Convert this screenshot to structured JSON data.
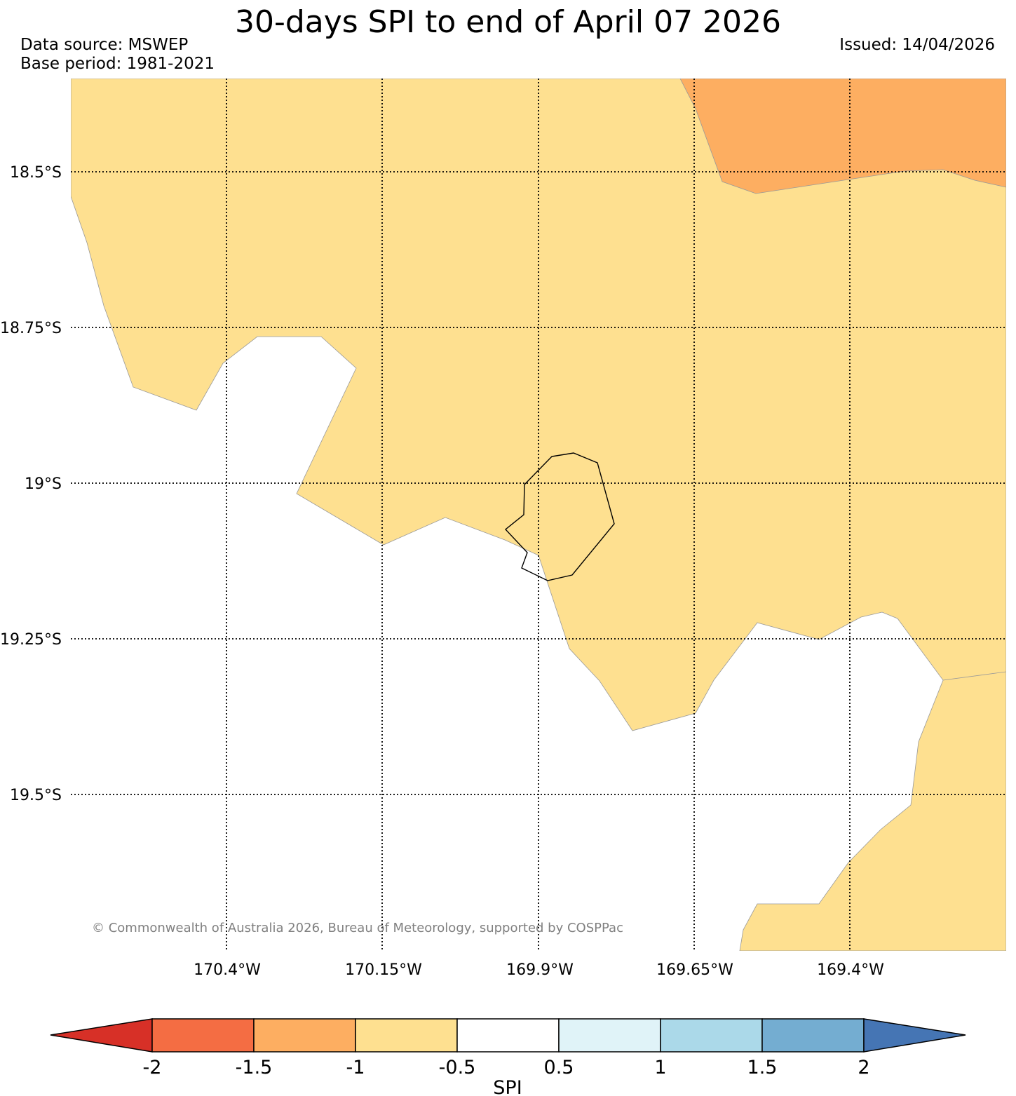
{
  "header": {
    "title": "30-days SPI to end of April 07 2026",
    "data_source": "Data source: MSWEP",
    "base_period": "Base period: 1981-2021",
    "issued": "Issued: 14/04/2026"
  },
  "map": {
    "lat_labels": [
      "18.5°S",
      "18.75°S",
      "19°S",
      "19.25°S",
      "19.5°S"
    ],
    "lon_labels": [
      "170.4°W",
      "170.15°W",
      "169.9°W",
      "169.65°W",
      "169.4°W"
    ],
    "copyright": "© Commonwealth of Australia 2026, Bureau of Meteorology, supported by COSPPac",
    "region_categories": {
      "orange": "-1.5 to -1",
      "light-orange": "-1 to -0.5",
      "white": "-0.5 to 0.5"
    }
  },
  "colorbar": {
    "label": "SPI",
    "ticks": [
      "-2",
      "-1.5",
      "-1",
      "-0.5",
      "0.5",
      "1",
      "1.5",
      "2"
    ],
    "colors": [
      "#d73027",
      "#f46d43",
      "#fdae61",
      "#fee090",
      "#ffffff",
      "#e0f3f8",
      "#abd9e9",
      "#74add1",
      "#4575b4"
    ]
  }
}
